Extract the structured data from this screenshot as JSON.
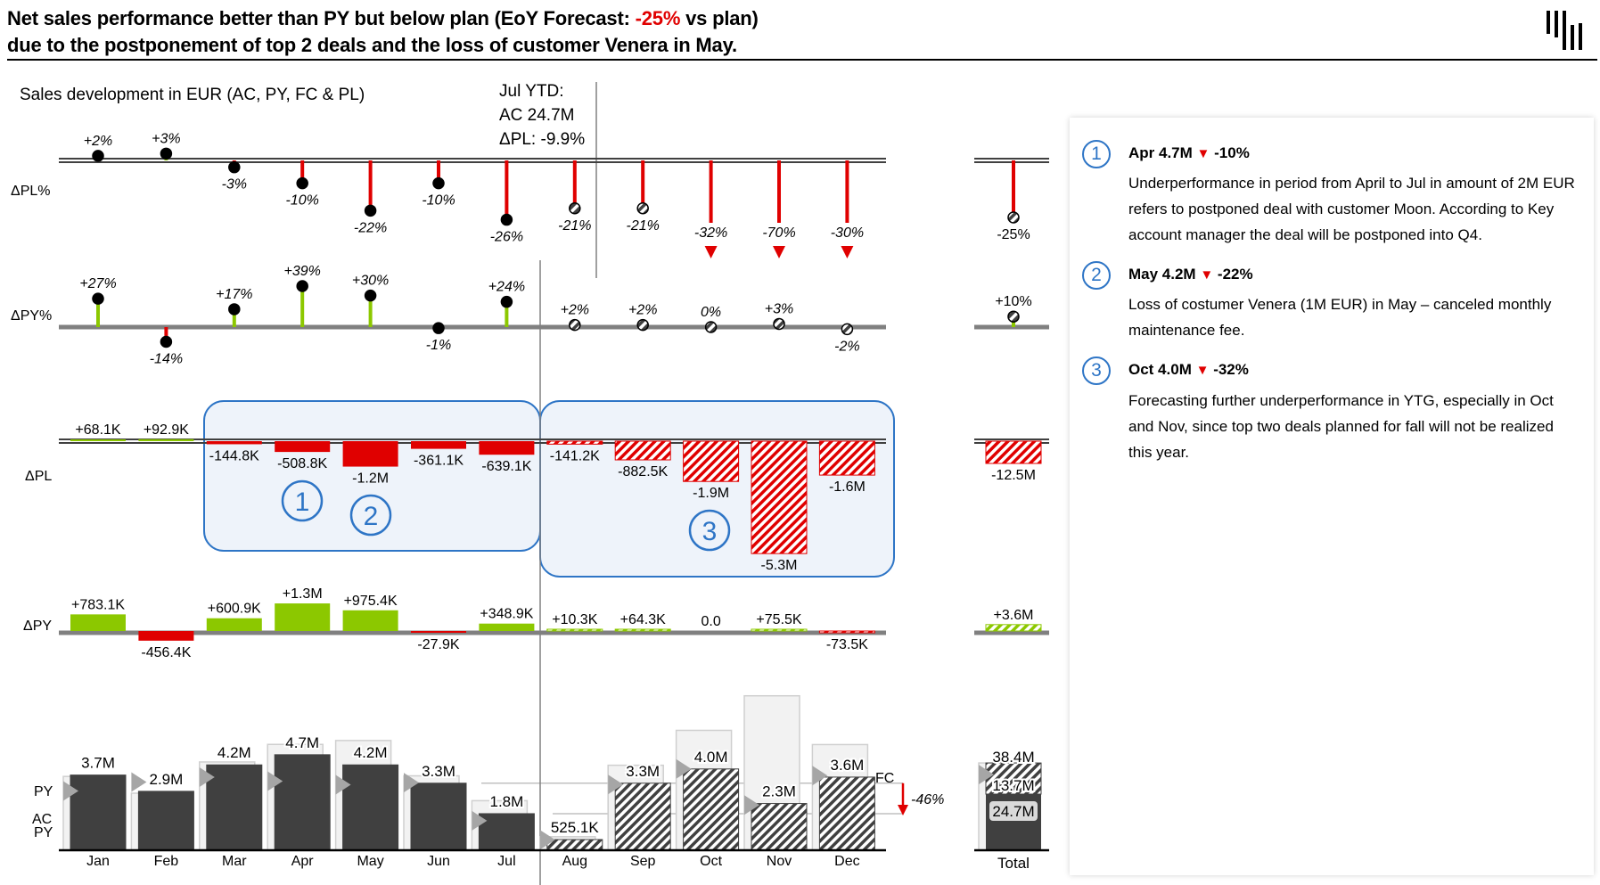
{
  "header": {
    "title_line1_pre": "Net sales performance better than PY but below plan (EoY Forecast: ",
    "title_line1_highlight": "-25%",
    "title_line1_post": " vs plan)",
    "title_line2": "due to the postponement of top 2 deals and the loss of customer Venera in May.",
    "logo": "bar-logo"
  },
  "colors": {
    "positive": "#8cc800",
    "negative": "#e00000",
    "actual": "#404040",
    "plan": "#f2f2f2",
    "highlight": "#2e75c6"
  },
  "chart_data": {
    "type": "bar",
    "title": "Sales development in EUR (AC, PY, FC & PL)",
    "ytd": {
      "line1": "Jul YTD:",
      "line2": "AC 24.7M",
      "line3": "ΔPL: -9.9%"
    },
    "row_labels": {
      "dpl_pct": "ΔPL%",
      "dpy_pct": "ΔPY%",
      "dpl": "ΔPL",
      "dpy": "ΔPY",
      "py": "PY",
      "ac": "AC",
      "py2": "PY",
      "fc": "FC"
    },
    "categories": [
      "Jan",
      "Feb",
      "Mar",
      "Apr",
      "May",
      "Jun",
      "Jul",
      "Aug",
      "Sep",
      "Oct",
      "Nov",
      "Dec"
    ],
    "total_label": "Total",
    "actual_months": 7,
    "dpl_pct": {
      "values": [
        2,
        3,
        -3,
        -10,
        -22,
        -10,
        -26,
        -21,
        -21,
        -32,
        -70,
        -30
      ],
      "labels": [
        "+2%",
        "+3%",
        "-3%",
        "-10%",
        "-22%",
        "-10%",
        "-26%",
        "-21%",
        "-21%",
        "-32%",
        "-70%",
        "-30%"
      ],
      "total": -25,
      "total_label": "-25%"
    },
    "dpy_pct": {
      "values": [
        27,
        -14,
        17,
        39,
        30,
        -1,
        24,
        2,
        2,
        0,
        3,
        -2
      ],
      "labels": [
        "+27%",
        "-14%",
        "+17%",
        "+39%",
        "+30%",
        "-1%",
        "+24%",
        "+2%",
        "+2%",
        "0%",
        "+3%",
        "-2%"
      ],
      "total": 10,
      "total_label": "+10%"
    },
    "dpl": {
      "values": [
        0.0681,
        0.0929,
        -0.1448,
        -0.5088,
        -1.2,
        -0.3611,
        -0.6391,
        -0.1412,
        -0.8825,
        -1.9,
        -5.3,
        -1.6
      ],
      "labels": [
        "+68.1K",
        "+92.9K",
        "-144.8K",
        "-508.8K",
        "-1.2M",
        "-361.1K",
        "-639.1K",
        "-141.2K",
        "-882.5K",
        "-1.9M",
        "-5.3M",
        "-1.6M"
      ],
      "total": -12.5,
      "total_label": "-12.5M"
    },
    "dpy": {
      "values": [
        0.7831,
        -0.4564,
        0.6009,
        1.3,
        0.9754,
        -0.0279,
        0.3489,
        0.0103,
        0.0643,
        0.0,
        0.0755,
        -0.0735
      ],
      "labels": [
        "+783.1K",
        "-456.4K",
        "+600.9K",
        "+1.3M",
        "+975.4K",
        "-27.9K",
        "+348.9K",
        "+10.3K",
        "+64.3K",
        "0.0",
        "+75.5K",
        "-73.5K"
      ],
      "total": 3.6,
      "total_label": "+3.6M"
    },
    "ac_fc": {
      "values": [
        3.7,
        2.9,
        4.2,
        4.7,
        4.2,
        3.3,
        1.8,
        0.5251,
        3.3,
        4.0,
        2.3,
        3.6
      ],
      "labels": [
        "3.7M",
        "2.9M",
        "4.2M",
        "4.7M",
        "4.2M",
        "3.3M",
        "1.8M",
        "525.1K",
        "3.3M",
        "4.0M",
        "2.3M",
        "3.6M"
      ]
    },
    "totals": {
      "pl": 38.4,
      "pl_label": "38.4M",
      "fc": 13.7,
      "fc_label": "13.7M",
      "ac": 24.7,
      "ac_label": "24.7M"
    },
    "trend": {
      "label": "-46%",
      "from": 3.3,
      "to": 1.8
    },
    "highlights": [
      "1",
      "2",
      "3"
    ],
    "unit": "EUR millions"
  },
  "comments": [
    {
      "num": "1",
      "head": "Apr 4.7M",
      "delta": "-10%",
      "text": "Underperformance in period from April to Jul in amount of 2M EUR refers to postponed deal with customer Moon. According to Key account manager the deal will be postponed into Q4."
    },
    {
      "num": "2",
      "head": "May 4.2M",
      "delta": "-22%",
      "text": "Loss of costumer Venera (1M EUR) in May – canceled monthly maintenance fee."
    },
    {
      "num": "3",
      "head": "Oct 4.0M",
      "delta": "-32%",
      "text": "Forecasting further underperformance in YTG, especially in Oct and Nov, since top two deals planned for fall will not be realized this year."
    }
  ],
  "triangle": "▼"
}
